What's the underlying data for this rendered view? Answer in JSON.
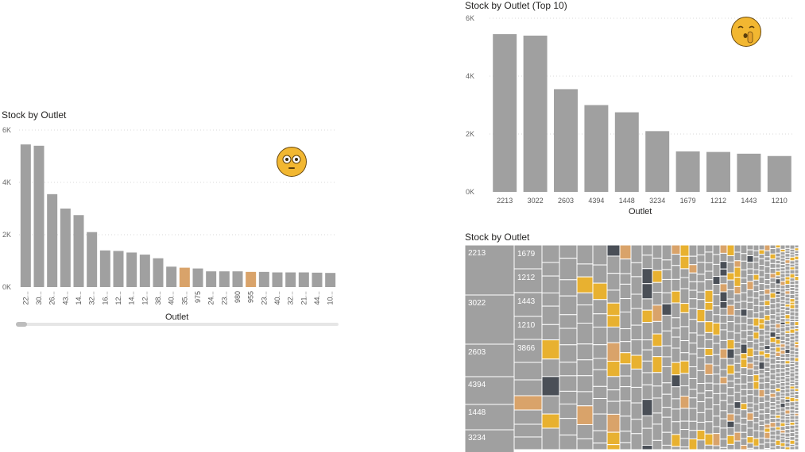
{
  "left_chart": {
    "title": "Stock by Outlet",
    "xlabel": "Outlet"
  },
  "top10_chart": {
    "title": "Stock by Outlet (Top 10)",
    "xlabel": "Outlet"
  },
  "treemap": {
    "title": "Stock by Outlet",
    "labels": [
      "2213",
      "3022",
      "2603",
      "4394",
      "1448",
      "3234",
      "1679",
      "1212",
      "1443",
      "1210",
      "3866"
    ]
  },
  "colors": {
    "bar": "#a0a0a0",
    "highlight": "#d9a36a",
    "treemap_cell": "#a0a0a0",
    "treemap_accent": "#e8b130",
    "treemap_dark": "#4a4f57"
  },
  "icons": [
    "flushed-face-emoji-icon",
    "shushing-face-emoji-icon"
  ],
  "chart_data": [
    {
      "type": "bar",
      "title": "Stock by Outlet",
      "xlabel": "Outlet",
      "ylabel": "",
      "ylim": [
        0,
        6000
      ],
      "yticks": [
        "0K",
        "2K",
        "4K",
        "6K"
      ],
      "categories": [
        "22...",
        "30...",
        "26...",
        "43...",
        "14...",
        "32...",
        "16...",
        "12...",
        "14...",
        "12...",
        "38...",
        "40...",
        "35...",
        "975",
        "24...",
        "23...",
        "980",
        "955",
        "23...",
        "40...",
        "32...",
        "21...",
        "44...",
        "10..."
      ],
      "values": [
        5450,
        5400,
        3550,
        3000,
        2750,
        2100,
        1400,
        1380,
        1320,
        1240,
        1100,
        780,
        740,
        710,
        600,
        600,
        600,
        580,
        580,
        560,
        560,
        560,
        550,
        540
      ],
      "highlighted": [
        12,
        17
      ],
      "grid": true
    },
    {
      "type": "bar",
      "title": "Stock by Outlet (Top 10)",
      "xlabel": "Outlet",
      "ylabel": "",
      "ylim": [
        0,
        6000
      ],
      "yticks": [
        "0K",
        "2K",
        "4K",
        "6K"
      ],
      "categories": [
        "2213",
        "3022",
        "2603",
        "4394",
        "1448",
        "3234",
        "1679",
        "1212",
        "1443",
        "1210"
      ],
      "values": [
        5450,
        5400,
        3550,
        3000,
        2750,
        2100,
        1400,
        1380,
        1320,
        1240
      ],
      "grid": true
    },
    {
      "type": "heatmap",
      "title": "Stock by Outlet",
      "categories": [
        "2213",
        "3022",
        "2603",
        "4394",
        "1448",
        "3234",
        "1679",
        "1212",
        "1443",
        "1210",
        "3866"
      ],
      "values": [
        5450,
        5400,
        3550,
        3000,
        2750,
        2100,
        1400,
        1380,
        1320,
        1240,
        1100
      ]
    }
  ]
}
